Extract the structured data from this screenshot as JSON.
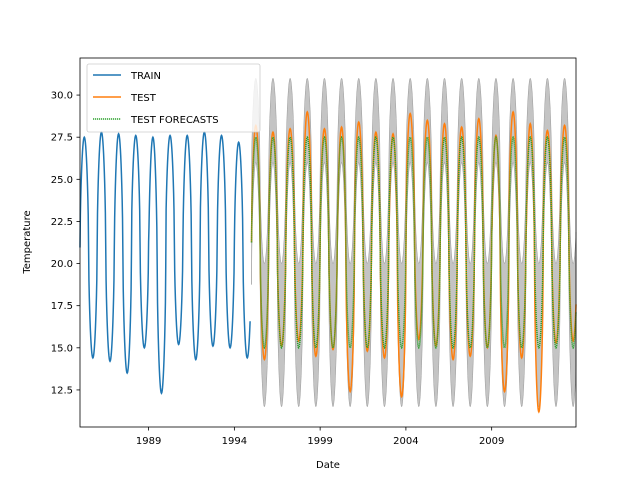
{
  "chart_data": {
    "type": "line",
    "title": "",
    "xlabel": "Date",
    "ylabel": "Temperature",
    "xlim": [
      "1985-01",
      "2013-12"
    ],
    "ylim": [
      10.3,
      32.2
    ],
    "x_ticks": [
      "1989",
      "1994",
      "1999",
      "2004",
      "2009"
    ],
    "y_ticks": [
      "12.5",
      "15.0",
      "17.5",
      "20.0",
      "22.5",
      "25.0",
      "27.5",
      "30.0"
    ],
    "grid": false,
    "legend_position": "top-left",
    "series": [
      {
        "name": "TRAIN",
        "color": "#1f77b4",
        "period": [
          "1985-01",
          "1994-12"
        ],
        "annual_peaks": [
          27.5,
          27.8,
          27.7,
          27.6,
          27.5,
          27.6,
          27.6,
          27.8,
          27.6,
          27.2
        ],
        "annual_troughs": [
          14.4,
          14.2,
          13.5,
          15.0,
          12.3,
          15.2,
          14.3,
          15.1,
          15.0,
          14.4
        ]
      },
      {
        "name": "TEST",
        "color": "#ff7f0e",
        "period": [
          "1995-01",
          "2013-12"
        ],
        "annual_peaks": [
          28.2,
          27.8,
          28.0,
          29.0,
          28.0,
          28.1,
          28.4,
          27.8,
          27.7,
          28.9,
          28.5,
          28.3,
          28.1,
          28.6,
          27.6,
          29.0,
          28.3,
          27.9,
          28.2
        ],
        "annual_troughs": [
          14.3,
          15.1,
          15.4,
          14.5,
          14.9,
          12.4,
          14.8,
          14.4,
          12.1,
          15.5,
          15.1,
          14.3,
          14.5,
          15.0,
          12.4,
          14.4,
          11.2,
          15.3,
          15.4
        ]
      },
      {
        "name": "TEST FORECASTS",
        "color": "#2ca02c",
        "period": [
          "1995-01",
          "2013-12"
        ],
        "annual_peak": 27.5,
        "annual_trough": 15.0,
        "interval_band": {
          "color": "#b0b0b0",
          "upper_peak": 31.0,
          "lower_trough": 11.5
        }
      }
    ]
  }
}
